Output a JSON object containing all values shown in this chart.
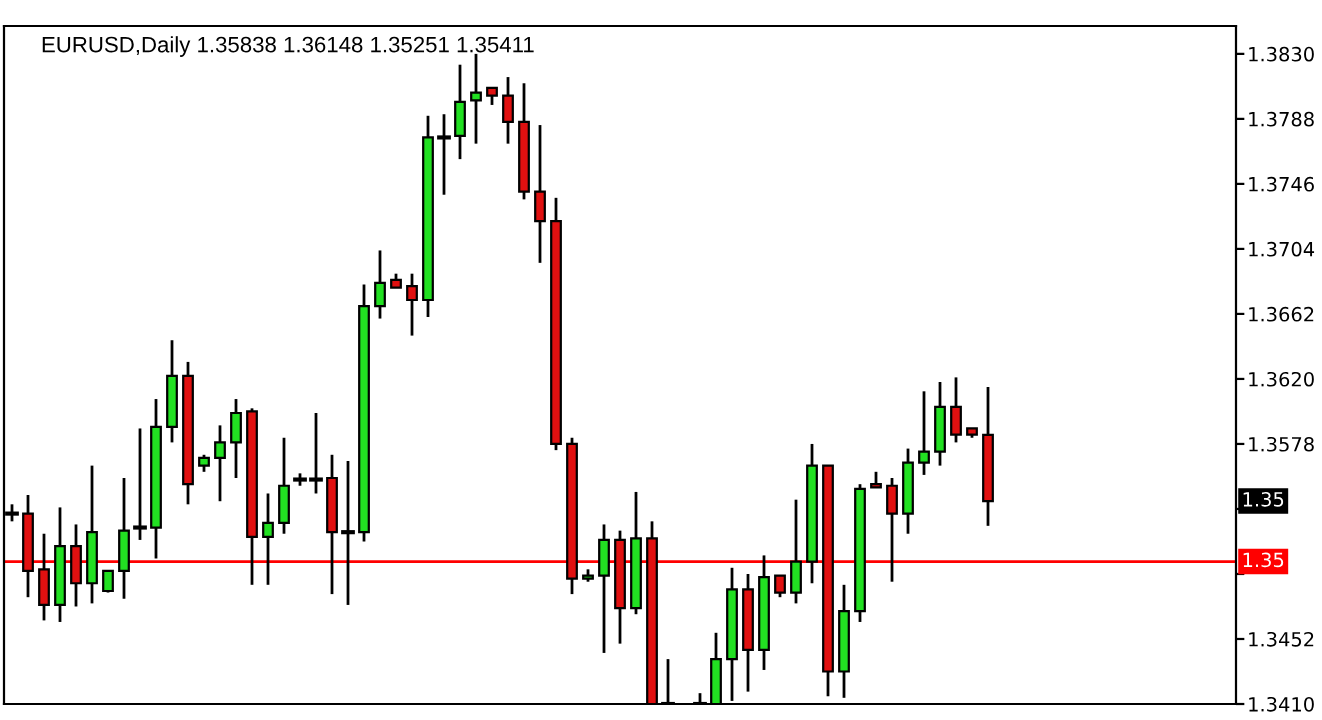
{
  "chart_data": {
    "type": "candlestick",
    "title": "EURUSD,Daily 1.35838 1.36148 1.35251 1.35411",
    "categories": [
      null,
      null,
      null,
      null,
      null,
      null,
      null,
      null,
      null,
      null,
      null,
      null,
      null,
      null,
      null,
      null,
      null,
      null,
      null,
      null,
      null,
      null,
      null,
      null,
      null,
      null,
      null,
      null,
      null,
      null,
      null,
      null,
      null,
      null,
      null,
      null,
      null,
      null,
      null,
      null,
      null,
      null,
      null,
      null,
      null,
      null,
      null,
      null,
      null,
      null,
      null,
      null,
      null,
      null,
      null,
      null,
      null,
      null,
      null,
      null,
      null,
      null,
      null,
      null,
      null,
      null,
      null,
      null,
      null,
      null,
      null,
      null,
      null,
      null,
      null,
      null,
      null
    ],
    "ohlc": [
      [
        1.3533,
        1.3539,
        1.3528,
        1.3533
      ],
      [
        1.3533,
        1.3545,
        1.3479,
        1.3496
      ],
      [
        1.3497,
        1.352,
        1.3464,
        1.3474
      ],
      [
        1.3474,
        1.3537,
        1.3463,
        1.3512
      ],
      [
        1.3512,
        1.3526,
        1.3473,
        1.3488
      ],
      [
        1.3488,
        1.3564,
        1.3475,
        1.3521
      ],
      [
        1.3483,
        1.3496,
        1.3482,
        1.3496
      ],
      [
        1.3496,
        1.3556,
        1.3478,
        1.3522
      ],
      [
        1.3524,
        1.3588,
        1.3516,
        1.3524
      ],
      [
        1.3524,
        1.3607,
        1.3504,
        1.3589
      ],
      [
        1.3589,
        1.3645,
        1.3579,
        1.3622
      ],
      [
        1.3622,
        1.3631,
        1.3539,
        1.3552
      ],
      [
        1.3564,
        1.3571,
        1.356,
        1.3569
      ],
      [
        1.3569,
        1.359,
        1.3541,
        1.3579
      ],
      [
        1.3579,
        1.3607,
        1.3556,
        1.3598
      ],
      [
        1.3599,
        1.3601,
        1.3487,
        1.3518
      ],
      [
        1.3518,
        1.3546,
        1.3487,
        1.3527
      ],
      [
        1.3527,
        1.3582,
        1.352,
        1.3551
      ],
      [
        1.3555,
        1.3559,
        1.3551,
        1.3555
      ],
      [
        1.3555,
        1.3598,
        1.3546,
        1.3555
      ],
      [
        1.3556,
        1.3571,
        1.3481,
        1.3521
      ],
      [
        1.3521,
        1.3567,
        1.3474,
        1.3521
      ],
      [
        1.3521,
        1.3681,
        1.3515,
        1.3667
      ],
      [
        1.3667,
        1.3703,
        1.3659,
        1.3682
      ],
      [
        1.3684,
        1.3688,
        1.3679,
        1.3679
      ],
      [
        1.368,
        1.3688,
        1.3648,
        1.3671
      ],
      [
        1.3671,
        1.379,
        1.366,
        1.3776
      ],
      [
        1.3776,
        1.3791,
        1.3739,
        1.3776
      ],
      [
        1.3777,
        1.3823,
        1.3762,
        1.3799
      ],
      [
        1.38,
        1.383,
        1.3772,
        1.3805
      ],
      [
        1.3808,
        1.3808,
        1.3797,
        1.3803
      ],
      [
        1.3803,
        1.3815,
        1.3772,
        1.3786
      ],
      [
        1.3786,
        1.3811,
        1.3736,
        1.3741
      ],
      [
        1.3741,
        1.3784,
        1.3695,
        1.3722
      ],
      [
        1.3722,
        1.3737,
        1.3574,
        1.3578
      ],
      [
        1.3578,
        1.3582,
        1.3481,
        1.3491
      ],
      [
        1.3491,
        1.3497,
        1.3489,
        1.3493
      ],
      [
        1.3493,
        1.3526,
        1.3443,
        1.3516
      ],
      [
        1.3516,
        1.3522,
        1.3449,
        1.3472
      ],
      [
        1.3472,
        1.3547,
        1.3468,
        1.3517
      ],
      [
        1.3517,
        1.3528,
        1.341,
        1.341
      ],
      [
        1.341,
        1.3439,
        1.341,
        1.341
      ],
      null,
      [
        1.341,
        1.3417,
        1.341,
        1.341
      ],
      [
        1.341,
        1.3456,
        1.341,
        1.3439
      ],
      [
        1.3439,
        1.3498,
        1.3412,
        1.3484
      ],
      [
        1.3484,
        1.3494,
        1.3418,
        1.3445
      ],
      [
        1.3445,
        1.3506,
        1.3432,
        1.3492
      ],
      [
        1.3493,
        1.3493,
        1.3479,
        1.3482
      ],
      [
        1.3482,
        1.3542,
        1.3475,
        1.3502
      ],
      [
        1.3502,
        1.3578,
        1.3488,
        1.3564
      ],
      [
        1.3564,
        1.3564,
        1.3415,
        1.3431
      ],
      [
        1.3431,
        1.3487,
        1.3414,
        1.347
      ],
      [
        1.347,
        1.3552,
        1.3463,
        1.3549
      ],
      [
        1.3552,
        1.356,
        1.355,
        1.355
      ],
      [
        1.3551,
        1.3556,
        1.3489,
        1.3533
      ],
      [
        1.3533,
        1.3575,
        1.352,
        1.3566
      ],
      [
        1.3566,
        1.3612,
        1.3558,
        1.3573
      ],
      [
        1.3573,
        1.3618,
        1.3564,
        1.3602
      ],
      [
        1.3602,
        1.3621,
        1.3579,
        1.3584
      ],
      [
        1.3588,
        1.3588,
        1.3582,
        1.3584
      ],
      [
        1.35838,
        1.36148,
        1.35251,
        1.35411
      ],
      null,
      null,
      null,
      null,
      null,
      null,
      null,
      null,
      null,
      null,
      null,
      null,
      null,
      null,
      null
    ],
    "colors": [
      "#000000",
      "#e01010",
      "#e01010",
      "#22e022",
      "#e01010",
      "#22e022",
      "#22e022",
      "#22e022",
      "#000000",
      "#22e022",
      "#22e022",
      "#e01010",
      "#22e022",
      "#22e022",
      "#22e022",
      "#e01010",
      "#22e022",
      "#22e022",
      "#000000",
      "#000000",
      "#e01010",
      "#000000",
      "#22e022",
      "#22e022",
      "#e01010",
      "#e01010",
      "#22e022",
      "#000000",
      "#22e022",
      "#22e022",
      "#e01010",
      "#e01010",
      "#e01010",
      "#e01010",
      "#e01010",
      "#e01010",
      "#22e022",
      "#22e022",
      "#e01010",
      "#22e022",
      "#e01010",
      "#000000",
      "#000000",
      "#000000",
      "#22e022",
      "#22e022",
      "#e01010",
      "#22e022",
      "#e01010",
      "#22e022",
      "#22e022",
      "#e01010",
      "#22e022",
      "#22e022",
      "#e01010",
      "#e01010",
      "#22e022",
      "#22e022",
      "#22e022",
      "#e01010",
      "#e01010",
      "#e01010",
      null,
      null,
      null,
      null,
      null,
      null,
      null,
      null,
      null,
      null,
      null,
      null,
      null,
      null,
      null
    ],
    "ylim": [
      1.341,
      1.3848
    ],
    "yticks": [
      {
        "value": 1.383,
        "label": "1.3830"
      },
      {
        "value": 1.3788,
        "label": "1.3788"
      },
      {
        "value": 1.3746,
        "label": "1.3746"
      },
      {
        "value": 1.3704,
        "label": "1.3704"
      },
      {
        "value": 1.3662,
        "label": "1.3662"
      },
      {
        "value": 1.362,
        "label": "1.3620"
      },
      {
        "value": 1.3578,
        "label": "1.3578"
      },
      {
        "value": 1.3536,
        "label": null
      },
      {
        "value": 1.3494,
        "label": null
      },
      {
        "value": 1.3452,
        "label": "1.3452"
      },
      {
        "value": 1.341,
        "label": "1.3410"
      }
    ],
    "ref_lines": [
      {
        "axis": "y",
        "value": 1.3502,
        "label": "1.35",
        "color": "#ff0000"
      }
    ],
    "annotations": [
      {
        "text": "1.35",
        "y": 1.35411
      }
    ],
    "grid": false
  }
}
